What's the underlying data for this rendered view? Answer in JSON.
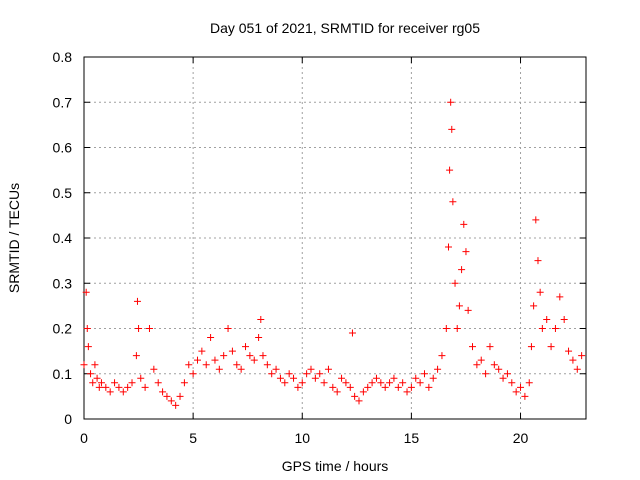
{
  "chart_data": {
    "type": "scatter",
    "title": "Day 051 of 2021, SRMTID for receiver rg05",
    "xlabel": "GPS time / hours",
    "ylabel": "SRMTID / TECUs",
    "xlim": [
      0,
      23
    ],
    "ylim": [
      0,
      0.8
    ],
    "xticks": [
      0,
      5,
      10,
      15,
      20
    ],
    "xtick_labels": [
      "0",
      "5",
      "10",
      "15",
      "20"
    ],
    "yticks": [
      0,
      0.1,
      0.2,
      0.3,
      0.4,
      0.5,
      0.6,
      0.7,
      0.8
    ],
    "ytick_labels": [
      "0",
      "0.1",
      "0.2",
      "0.3",
      "0.4",
      "0.5",
      "0.6",
      "0.7",
      "0.8"
    ],
    "grid": true,
    "marker": "+",
    "color": "#ff0000",
    "series": [
      {
        "name": "SRMTID",
        "x": [
          0.0,
          0.1,
          0.15,
          0.2,
          0.3,
          0.4,
          0.5,
          0.6,
          0.7,
          0.8,
          1.0,
          1.2,
          1.4,
          1.6,
          1.8,
          2.0,
          2.2,
          2.4,
          2.45,
          2.5,
          2.6,
          2.8,
          3.0,
          3.2,
          3.4,
          3.6,
          3.8,
          4.0,
          4.2,
          4.4,
          4.6,
          4.8,
          5.0,
          5.2,
          5.4,
          5.6,
          5.8,
          6.0,
          6.2,
          6.4,
          6.6,
          6.8,
          7.0,
          7.2,
          7.4,
          7.6,
          7.8,
          8.0,
          8.1,
          8.2,
          8.4,
          8.6,
          8.8,
          9.0,
          9.2,
          9.4,
          9.6,
          9.8,
          10.0,
          10.2,
          10.4,
          10.6,
          10.8,
          11.0,
          11.2,
          11.4,
          11.6,
          11.8,
          12.0,
          12.2,
          12.3,
          12.4,
          12.6,
          12.8,
          13.0,
          13.2,
          13.4,
          13.6,
          13.8,
          14.0,
          14.2,
          14.4,
          14.6,
          14.8,
          15.0,
          15.2,
          15.4,
          15.6,
          15.8,
          16.0,
          16.2,
          16.4,
          16.6,
          16.7,
          16.75,
          16.8,
          16.85,
          16.9,
          17.0,
          17.1,
          17.2,
          17.3,
          17.4,
          17.5,
          17.6,
          17.8,
          18.0,
          18.2,
          18.4,
          18.6,
          18.8,
          19.0,
          19.2,
          19.4,
          19.6,
          19.8,
          20.0,
          20.2,
          20.4,
          20.5,
          20.6,
          20.7,
          20.8,
          20.9,
          21.0,
          21.2,
          21.4,
          21.6,
          21.8,
          22.0,
          22.2,
          22.4,
          22.6,
          22.8
        ],
        "y": [
          0.12,
          0.28,
          0.2,
          0.16,
          0.1,
          0.08,
          0.12,
          0.09,
          0.07,
          0.08,
          0.07,
          0.06,
          0.08,
          0.07,
          0.06,
          0.07,
          0.08,
          0.14,
          0.26,
          0.2,
          0.09,
          0.07,
          0.2,
          0.11,
          0.08,
          0.06,
          0.05,
          0.04,
          0.03,
          0.05,
          0.08,
          0.12,
          0.1,
          0.13,
          0.15,
          0.12,
          0.18,
          0.13,
          0.11,
          0.14,
          0.2,
          0.15,
          0.12,
          0.11,
          0.16,
          0.14,
          0.13,
          0.18,
          0.22,
          0.14,
          0.12,
          0.1,
          0.11,
          0.09,
          0.08,
          0.1,
          0.09,
          0.07,
          0.08,
          0.1,
          0.11,
          0.09,
          0.1,
          0.08,
          0.11,
          0.07,
          0.06,
          0.09,
          0.08,
          0.07,
          0.19,
          0.05,
          0.04,
          0.06,
          0.07,
          0.08,
          0.09,
          0.08,
          0.07,
          0.08,
          0.09,
          0.07,
          0.08,
          0.06,
          0.07,
          0.09,
          0.08,
          0.1,
          0.07,
          0.09,
          0.11,
          0.14,
          0.2,
          0.38,
          0.55,
          0.7,
          0.64,
          0.48,
          0.3,
          0.2,
          0.25,
          0.33,
          0.43,
          0.37,
          0.24,
          0.16,
          0.12,
          0.13,
          0.1,
          0.16,
          0.12,
          0.11,
          0.09,
          0.1,
          0.08,
          0.06,
          0.07,
          0.05,
          0.08,
          0.16,
          0.25,
          0.44,
          0.35,
          0.28,
          0.2,
          0.22,
          0.16,
          0.2,
          0.27,
          0.22,
          0.15,
          0.13,
          0.11,
          0.14
        ]
      }
    ]
  }
}
